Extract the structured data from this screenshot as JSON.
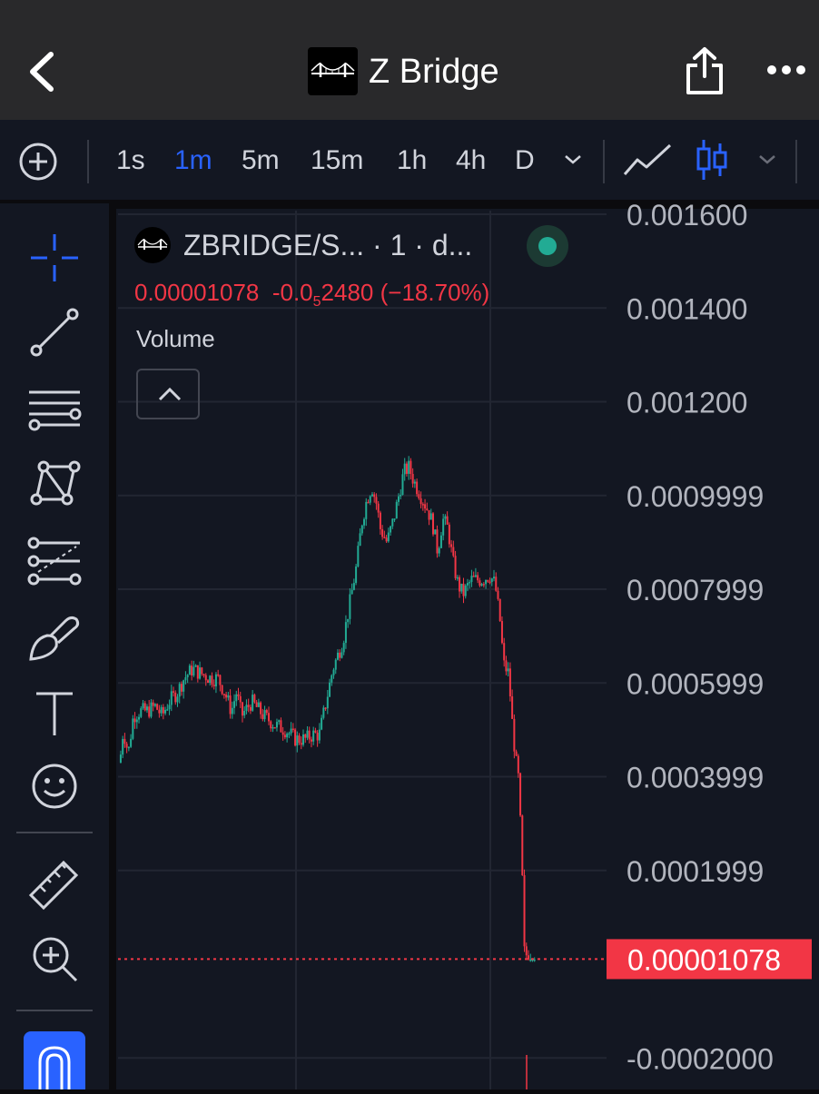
{
  "header": {
    "title": "Z Bridge",
    "back_icon": "chevron-left-icon",
    "share_icon": "share-icon",
    "more_icon": "more-horizontal-icon"
  },
  "toolbar": {
    "add_icon": "plus-circle-icon",
    "intervals": [
      "1s",
      "1m",
      "5m",
      "15m",
      "1h",
      "4h",
      "D"
    ],
    "active_interval": "1m",
    "interval_dropdown_icon": "chevron-down-icon",
    "line_style_icon": "line-chart-icon",
    "candle_style_icon": "candlestick-icon",
    "chart_style_dropdown_icon": "chevron-down-icon"
  },
  "drawing_tools": [
    "crosshair-icon",
    "trend-line-icon",
    "horizontal-lines-icon",
    "pattern-icon",
    "fib-retracement-icon",
    "brush-icon",
    "text-icon",
    "emoji-icon",
    "ruler-icon",
    "zoom-in-icon",
    "magnet-icon"
  ],
  "legend": {
    "symbol": "ZBRIDGE/S... · 1 · d...",
    "last_price": "0.00001078",
    "change_prefix": "-0.0",
    "change_subscript": "5",
    "change_rest": "2480",
    "change_percent": "(−18.70%)",
    "volume_label": "Volume"
  },
  "colors": {
    "up": "#22ab94",
    "down": "#f23645",
    "accent": "#2962ff",
    "background": "#131722"
  },
  "chart_data": {
    "type": "candlestick",
    "interval": "1m",
    "y_axis_labels": [
      {
        "value": 0.0016,
        "label": "0.001600"
      },
      {
        "value": 0.0014,
        "label": "0.001400"
      },
      {
        "value": 0.0012,
        "label": "0.001200"
      },
      {
        "value": 0.001,
        "label": "0.0009999"
      },
      {
        "value": 0.0008,
        "label": "0.0007999"
      },
      {
        "value": 0.0006,
        "label": "0.0005999"
      },
      {
        "value": 0.0004,
        "label": "0.0003999"
      },
      {
        "value": 0.0002,
        "label": "0.0001999"
      },
      {
        "value": -0.0002,
        "label": "-0.0002000"
      }
    ],
    "ylim": [
      -0.0002,
      0.0016
    ],
    "current_price": 1.078e-05,
    "current_price_label": "0.00001078",
    "price_path": [
      [
        0,
        0.00043
      ],
      [
        2,
        0.0005
      ],
      [
        5,
        0.00045
      ],
      [
        8,
        0.00053
      ],
      [
        12,
        0.00054
      ],
      [
        16,
        0.00054
      ],
      [
        21,
        0.00055
      ],
      [
        25,
        0.00053
      ],
      [
        29,
        0.00056
      ],
      [
        34,
        0.00058
      ],
      [
        38,
        0.00061
      ],
      [
        43,
        0.00063
      ],
      [
        48,
        0.00062
      ],
      [
        54,
        0.00061
      ],
      [
        58,
        0.00061
      ],
      [
        62,
        0.00058
      ],
      [
        66,
        0.00054
      ],
      [
        69,
        0.00058
      ],
      [
        72,
        0.00053
      ],
      [
        78,
        0.00056
      ],
      [
        85,
        0.00053
      ],
      [
        92,
        0.00051
      ],
      [
        98,
        0.0005
      ],
      [
        104,
        0.00048
      ],
      [
        110,
        0.00048
      ],
      [
        114,
        0.00049
      ],
      [
        118,
        0.00049
      ],
      [
        122,
        0.00056
      ],
      [
        126,
        0.00063
      ],
      [
        132,
        0.00069
      ],
      [
        136,
        0.00077
      ],
      [
        140,
        0.00085
      ],
      [
        143,
        0.00094
      ],
      [
        146,
        0.00099
      ],
      [
        149,
        0.00102
      ],
      [
        152,
        0.00098
      ],
      [
        154,
        0.00093
      ],
      [
        158,
        0.0009
      ],
      [
        162,
        0.00095
      ],
      [
        165,
        0.001
      ],
      [
        168,
        0.00105
      ],
      [
        171,
        0.00106
      ],
      [
        174,
        0.00103
      ],
      [
        178,
        0.001
      ],
      [
        182,
        0.00097
      ],
      [
        185,
        0.00094
      ],
      [
        188,
        0.00088
      ],
      [
        191,
        0.00095
      ],
      [
        194,
        0.00093
      ],
      [
        197,
        0.00086
      ],
      [
        200,
        0.00081
      ],
      [
        203,
        0.00079
      ],
      [
        208,
        0.00082
      ],
      [
        214,
        0.00082
      ],
      [
        219,
        0.00083
      ],
      [
        222,
        0.00081
      ],
      [
        225,
        0.00073
      ],
      [
        227,
        0.00064
      ],
      [
        230,
        0.00062
      ],
      [
        232,
        0.00052
      ],
      [
        234,
        0.00044
      ],
      [
        236,
        0.00039
      ],
      [
        238,
        0.0002
      ],
      [
        239,
        4e-05
      ],
      [
        241,
        1.2e-05
      ],
      [
        246,
        1.078e-05
      ]
    ]
  }
}
